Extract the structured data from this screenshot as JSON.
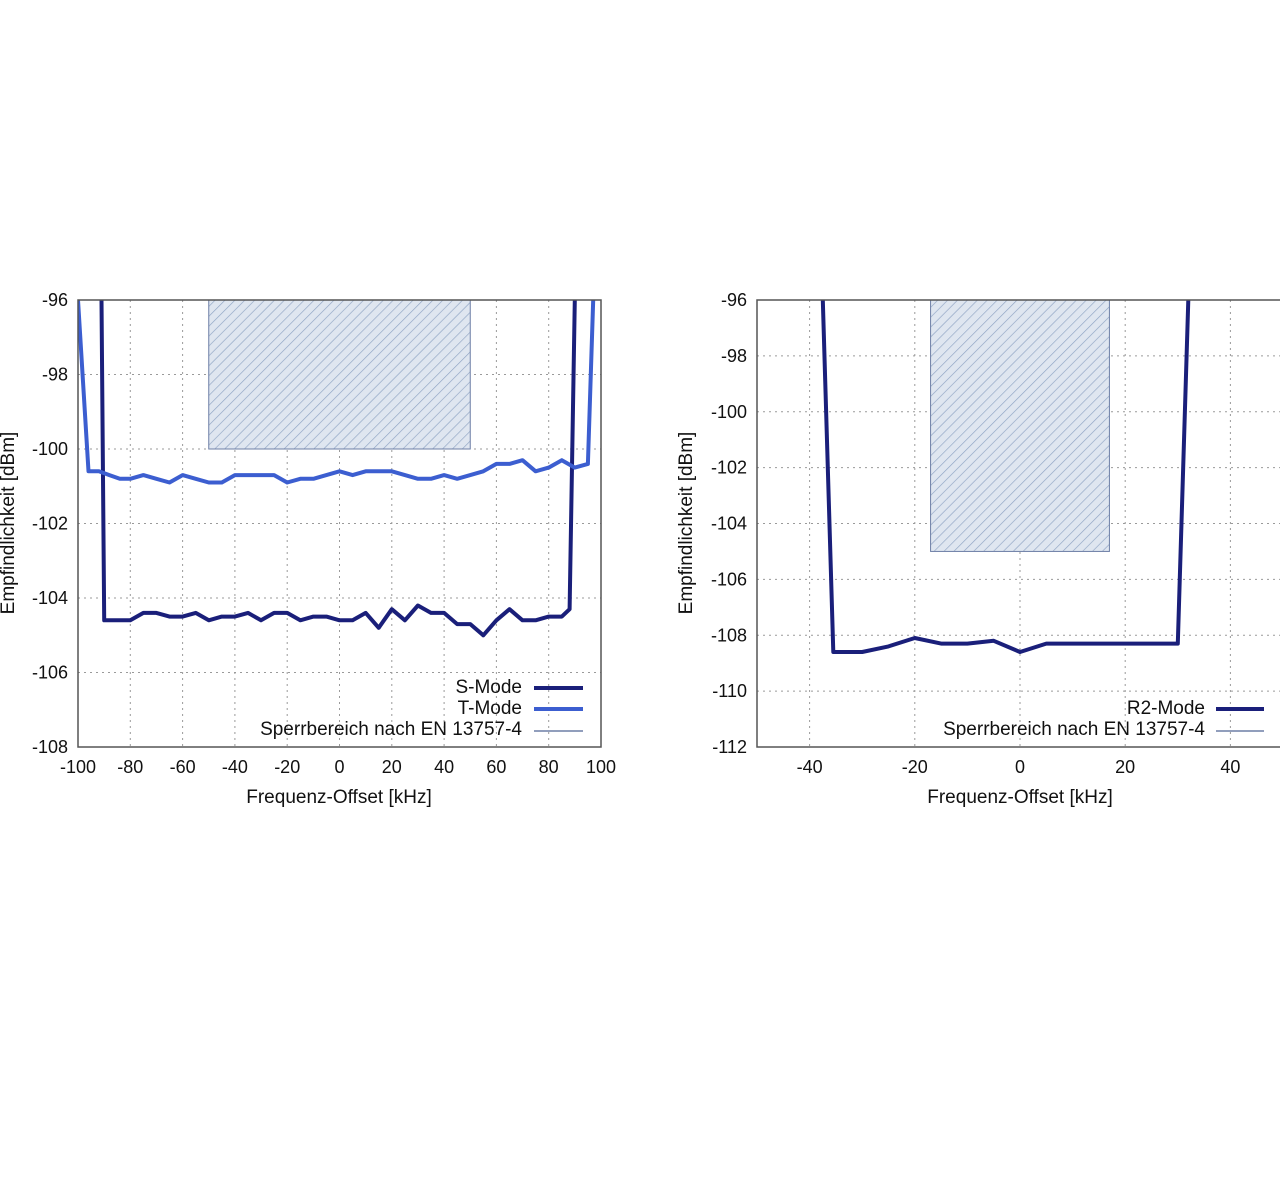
{
  "colors": {
    "s_mode": "#1a1f7a",
    "t_mode": "#3c5ed0",
    "r2_mode": "#1a1f7a",
    "sperr_fill": "#dfe6f0",
    "sperr_hatch": "#8fa4c4",
    "sperr_line": "#6d7fa6",
    "grid": "#9a9a9a",
    "frame": "#555555"
  },
  "chart_data": [
    {
      "type": "line",
      "title": "",
      "xlabel": "Frequenz-Offset [kHz]",
      "ylabel": "Empfindlichkeit [dBm]",
      "xlim": [
        -100,
        100
      ],
      "ylim": [
        -108,
        -96
      ],
      "xticks": [
        -100,
        -80,
        -60,
        -40,
        -20,
        0,
        20,
        40,
        60,
        80,
        100
      ],
      "yticks": [
        -96,
        -98,
        -100,
        -102,
        -104,
        -106,
        -108
      ],
      "xtick_labels": [
        "-100",
        "-80",
        "-60",
        "-40",
        "-20",
        "0",
        "20",
        "40",
        "60",
        "80",
        "100"
      ],
      "ytick_labels": [
        "-96",
        "-98",
        "-100",
        "-102",
        "-104",
        "-106",
        "-108"
      ],
      "grid": true,
      "legend_position": "bottom-right",
      "series": [
        {
          "name": "S-Mode",
          "color_key": "s_mode",
          "width": 4,
          "points": [
            [
              -91,
              -96
            ],
            [
              -90,
              -104.6
            ],
            [
              -85,
              -104.6
            ],
            [
              -80,
              -104.6
            ],
            [
              -75,
              -104.4
            ],
            [
              -70,
              -104.4
            ],
            [
              -65,
              -104.5
            ],
            [
              -60,
              -104.5
            ],
            [
              -55,
              -104.4
            ],
            [
              -50,
              -104.6
            ],
            [
              -45,
              -104.5
            ],
            [
              -40,
              -104.5
            ],
            [
              -35,
              -104.4
            ],
            [
              -30,
              -104.6
            ],
            [
              -25,
              -104.4
            ],
            [
              -20,
              -104.4
            ],
            [
              -15,
              -104.6
            ],
            [
              -10,
              -104.5
            ],
            [
              -5,
              -104.5
            ],
            [
              0,
              -104.6
            ],
            [
              5,
              -104.6
            ],
            [
              10,
              -104.4
            ],
            [
              15,
              -104.8
            ],
            [
              20,
              -104.3
            ],
            [
              25,
              -104.6
            ],
            [
              30,
              -104.2
            ],
            [
              35,
              -104.4
            ],
            [
              40,
              -104.4
            ],
            [
              45,
              -104.7
            ],
            [
              50,
              -104.7
            ],
            [
              55,
              -105.0
            ],
            [
              60,
              -104.6
            ],
            [
              65,
              -104.3
            ],
            [
              70,
              -104.6
            ],
            [
              75,
              -104.6
            ],
            [
              80,
              -104.5
            ],
            [
              85,
              -104.5
            ],
            [
              88,
              -104.3
            ],
            [
              90,
              -96
            ]
          ]
        },
        {
          "name": "T-Mode",
          "color_key": "t_mode",
          "width": 4,
          "points": [
            [
              -100,
              -96
            ],
            [
              -96,
              -100.6
            ],
            [
              -92,
              -100.6
            ],
            [
              -88,
              -100.7
            ],
            [
              -84,
              -100.8
            ],
            [
              -80,
              -100.8
            ],
            [
              -75,
              -100.7
            ],
            [
              -70,
              -100.8
            ],
            [
              -65,
              -100.9
            ],
            [
              -60,
              -100.7
            ],
            [
              -55,
              -100.8
            ],
            [
              -50,
              -100.9
            ],
            [
              -45,
              -100.9
            ],
            [
              -40,
              -100.7
            ],
            [
              -35,
              -100.7
            ],
            [
              -30,
              -100.7
            ],
            [
              -25,
              -100.7
            ],
            [
              -20,
              -100.9
            ],
            [
              -15,
              -100.8
            ],
            [
              -10,
              -100.8
            ],
            [
              -5,
              -100.7
            ],
            [
              0,
              -100.6
            ],
            [
              5,
              -100.7
            ],
            [
              10,
              -100.6
            ],
            [
              15,
              -100.6
            ],
            [
              20,
              -100.6
            ],
            [
              25,
              -100.7
            ],
            [
              30,
              -100.8
            ],
            [
              35,
              -100.8
            ],
            [
              40,
              -100.7
            ],
            [
              45,
              -100.8
            ],
            [
              50,
              -100.7
            ],
            [
              55,
              -100.6
            ],
            [
              60,
              -100.4
            ],
            [
              65,
              -100.4
            ],
            [
              70,
              -100.3
            ],
            [
              75,
              -100.6
            ],
            [
              80,
              -100.5
            ],
            [
              85,
              -100.3
            ],
            [
              90,
              -100.5
            ],
            [
              95,
              -100.4
            ],
            [
              97,
              -96
            ]
          ]
        }
      ],
      "sperrbereich": {
        "name": "Sperrbereich nach EN 13757-4",
        "x": [
          -50,
          50
        ],
        "y": [
          -100,
          -96
        ]
      }
    },
    {
      "type": "line",
      "title": "",
      "xlabel": "Frequenz-Offset [kHz]",
      "ylabel": "Empfindlichkeit [dBm]",
      "xlim": [
        -50,
        50
      ],
      "ylim": [
        -112,
        -96
      ],
      "xticks": [
        -40,
        -20,
        0,
        20,
        40
      ],
      "yticks": [
        -96,
        -98,
        -100,
        -102,
        -104,
        -106,
        -108,
        -110,
        -112
      ],
      "xtick_labels": [
        "-40",
        "-20",
        "0",
        "20",
        "40"
      ],
      "ytick_labels": [
        "-96",
        "-98",
        "-100",
        "-102",
        "-104",
        "-106",
        "-108",
        "-110",
        "-112"
      ],
      "grid": true,
      "legend_position": "bottom-right",
      "series": [
        {
          "name": "R2-Mode",
          "color_key": "r2_mode",
          "width": 4,
          "points": [
            [
              -37.5,
              -96
            ],
            [
              -35.5,
              -108.6
            ],
            [
              -30,
              -108.6
            ],
            [
              -25,
              -108.4
            ],
            [
              -20,
              -108.1
            ],
            [
              -15,
              -108.3
            ],
            [
              -10,
              -108.3
            ],
            [
              -5,
              -108.2
            ],
            [
              0,
              -108.6
            ],
            [
              5,
              -108.3
            ],
            [
              10,
              -108.3
            ],
            [
              15,
              -108.3
            ],
            [
              20,
              -108.3
            ],
            [
              25,
              -108.3
            ],
            [
              30,
              -108.3
            ],
            [
              32,
              -96
            ]
          ]
        }
      ],
      "sperrbereich": {
        "name": "Sperrbereich nach EN 13757-4",
        "x": [
          -17,
          17
        ],
        "y": [
          -105,
          -96
        ]
      }
    }
  ]
}
